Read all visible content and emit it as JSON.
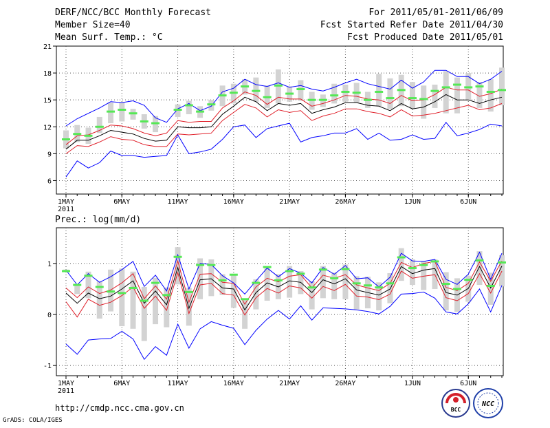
{
  "header": {
    "title": "DERF/NCC/BCC Monthly Forecast",
    "member_size": "Member Size=40",
    "for_range": "For 2011/05/01-2011/06/09",
    "refer_date": "Fcst Started Refer Date 2011/04/30",
    "produced_date": "Fcst Produced Date 2011/05/01"
  },
  "footer": {
    "url": "http://cmdp.ncc.cma.gov.cn",
    "grads_credit": "GrADS: COLA/IGES",
    "logo_bcc": "BCC",
    "logo_ncc": "NCC"
  },
  "colors": {
    "box": "#d3d3d3",
    "median": "#55e855",
    "mean": "#000000",
    "spread": "#e0202a",
    "envelope": "#0000ff",
    "grid": "#555555"
  },
  "chart_data": [
    {
      "type": "line",
      "title": "Mean Surf. Temp.: °C",
      "xlabel": "",
      "ylabel": "°C",
      "ylim": [
        4.5,
        21
      ],
      "yticks": [
        6,
        9,
        12,
        15,
        18,
        21
      ],
      "grid": true,
      "x_tick_labels": [
        "1MAY",
        "6MAY",
        "11MAY",
        "16MAY",
        "21MAY",
        "26MAY",
        "1JUN",
        "6JUN"
      ],
      "x_tick_days": [
        1,
        6,
        11,
        16,
        21,
        26,
        32,
        37
      ],
      "x_year_label": "2011",
      "days": [
        1,
        2,
        3,
        4,
        5,
        6,
        7,
        8,
        9,
        10,
        11,
        12,
        13,
        14,
        15,
        16,
        17,
        18,
        19,
        20,
        21,
        22,
        23,
        24,
        25,
        26,
        27,
        28,
        29,
        30,
        31,
        32,
        33,
        34,
        35,
        36,
        37,
        38,
        39,
        40
      ],
      "series": [
        {
          "name": "max",
          "values": [
            12.1,
            12.9,
            13.5,
            14.1,
            14.8,
            14.7,
            14.9,
            14.4,
            13.0,
            12.5,
            14.0,
            14.6,
            13.8,
            14.3,
            15.9,
            16.3,
            17.3,
            16.7,
            16.5,
            16.9,
            16.4,
            16.6,
            16.2,
            16.0,
            16.4,
            16.9,
            17.3,
            16.8,
            16.5,
            16.2,
            17.2,
            16.3,
            17.0,
            18.3,
            18.3,
            17.6,
            17.6,
            16.8,
            17.3,
            18.2
          ]
        },
        {
          "name": "upper",
          "values": [
            10.0,
            11.0,
            11.1,
            11.6,
            12.2,
            12.1,
            11.8,
            11.3,
            11.0,
            11.3,
            12.7,
            12.5,
            12.6,
            12.6,
            14.1,
            14.9,
            15.9,
            15.5,
            14.5,
            15.3,
            15.1,
            15.1,
            14.3,
            14.6,
            15.0,
            15.5,
            15.4,
            15.1,
            15.0,
            14.6,
            15.5,
            14.9,
            15.0,
            15.6,
            16.4,
            16.1,
            16.1,
            15.4,
            15.7,
            16.2
          ]
        },
        {
          "name": "mean",
          "values": [
            9.5,
            10.5,
            10.5,
            11.0,
            11.6,
            11.4,
            11.2,
            10.7,
            10.4,
            10.5,
            12.0,
            11.9,
            11.9,
            12.0,
            13.4,
            14.3,
            15.3,
            14.8,
            13.8,
            14.6,
            14.4,
            14.6,
            13.5,
            13.9,
            14.2,
            14.7,
            14.7,
            14.4,
            14.3,
            13.8,
            14.6,
            14.0,
            14.2,
            14.8,
            15.6,
            15.0,
            15.0,
            14.6,
            15.0,
            15.3
          ]
        },
        {
          "name": "lower",
          "values": [
            9.0,
            9.9,
            9.8,
            10.3,
            10.9,
            10.6,
            10.5,
            10.0,
            9.8,
            9.8,
            11.2,
            11.1,
            11.2,
            11.3,
            12.7,
            13.6,
            14.5,
            14.1,
            13.1,
            13.9,
            13.6,
            13.8,
            12.7,
            13.2,
            13.5,
            14.0,
            14.0,
            13.7,
            13.5,
            13.1,
            13.9,
            13.2,
            13.3,
            13.5,
            13.8,
            14.1,
            14.4,
            13.9,
            14.1,
            14.6
          ]
        },
        {
          "name": "min",
          "values": [
            6.4,
            8.2,
            7.4,
            8.0,
            9.3,
            8.8,
            8.8,
            8.6,
            8.7,
            8.8,
            11.1,
            9.0,
            9.2,
            9.5,
            10.6,
            12.0,
            12.2,
            10.8,
            11.8,
            12.1,
            12.4,
            10.3,
            10.8,
            11.0,
            11.3,
            11.3,
            11.8,
            10.6,
            11.3,
            10.5,
            10.6,
            11.1,
            10.6,
            10.7,
            12.5,
            11.0,
            11.3,
            11.7,
            12.3,
            12.1
          ]
        }
      ],
      "median": [
        10.6,
        11.2,
        11.0,
        12.0,
        13.7,
        13.9,
        13.5,
        12.6,
        12.4,
        null,
        13.9,
        14.4,
        13.7,
        14.5,
        15.5,
        15.8,
        16.5,
        16.0,
        15.3,
        16.6,
        15.7,
        16.2,
        15.0,
        15.0,
        15.5,
        15.9,
        15.8,
        15.0,
        15.9,
        15.2,
        16.1,
        15.2,
        15.1,
        16.0,
        16.4,
        16.7,
        16.4,
        16.5,
        15.9,
        16.1
      ],
      "box_top": [
        11.6,
        12.2,
        11.9,
        13.1,
        14.7,
        14.7,
        14.0,
        13.4,
        13.2,
        null,
        14.5,
        14.9,
        14.3,
        15.0,
        16.6,
        16.8,
        17.3,
        17.5,
        16.6,
        18.4,
        16.5,
        17.2,
        15.9,
        15.6,
        16.8,
        16.7,
        16.9,
        15.9,
        17.9,
        17.4,
        17.8,
        17.0,
        16.6,
        16.7,
        18.2,
        17.5,
        18.0,
        17.0,
        17.3,
        18.6
      ],
      "box_bottom": [
        9.6,
        10.3,
        10.1,
        11.3,
        12.4,
        12.6,
        12.8,
        11.8,
        11.4,
        null,
        13.1,
        13.4,
        13.0,
        13.8,
        14.3,
        14.6,
        15.6,
        14.8,
        14.1,
        14.6,
        14.8,
        14.9,
        13.9,
        14.2,
        14.6,
        14.8,
        14.7,
        14.1,
        14.3,
        14.0,
        14.3,
        14.0,
        12.9,
        14.1,
        13.5,
        13.5,
        15.0,
        14.1,
        13.7,
        14.4
      ]
    },
    {
      "type": "line",
      "title": "Prec.: log(mm/d)",
      "xlabel": "",
      "ylabel": "log(mm/d)",
      "ylim": [
        -1.2,
        1.7
      ],
      "yticks": [
        -1,
        0,
        1
      ],
      "grid": true,
      "x_tick_labels": [
        "1MAY",
        "6MAY",
        "11MAY",
        "16MAY",
        "21MAY",
        "26MAY",
        "1JUN",
        "6JUN"
      ],
      "x_tick_days": [
        1,
        6,
        11,
        16,
        21,
        26,
        32,
        37
      ],
      "x_year_label": "2011",
      "days": [
        1,
        2,
        3,
        4,
        5,
        6,
        7,
        8,
        9,
        10,
        11,
        12,
        13,
        14,
        15,
        16,
        17,
        18,
        19,
        20,
        21,
        22,
        23,
        24,
        25,
        26,
        27,
        28,
        29,
        30,
        31,
        32,
        33,
        34,
        35,
        36,
        37,
        38,
        39,
        40
      ],
      "series": [
        {
          "name": "max",
          "values": [
            0.87,
            0.58,
            0.8,
            0.63,
            0.74,
            0.88,
            1.04,
            0.55,
            0.77,
            0.46,
            1.17,
            0.5,
            1.0,
            0.98,
            0.76,
            0.62,
            0.4,
            0.66,
            0.91,
            0.74,
            0.9,
            0.81,
            0.62,
            0.92,
            0.79,
            0.96,
            0.7,
            0.72,
            0.54,
            0.73,
            1.2,
            1.05,
            1.04,
            1.08,
            0.69,
            0.59,
            0.79,
            1.22,
            0.69,
            1.2
          ]
        },
        {
          "name": "upper",
          "values": [
            0.52,
            0.33,
            0.54,
            0.41,
            0.48,
            0.62,
            0.8,
            0.31,
            0.56,
            0.3,
            1.05,
            0.24,
            0.79,
            0.8,
            0.63,
            0.61,
            0.2,
            0.54,
            0.71,
            0.64,
            0.75,
            0.78,
            0.52,
            0.77,
            0.71,
            0.78,
            0.58,
            0.52,
            0.47,
            0.61,
            1.02,
            0.92,
            1.0,
            1.04,
            0.53,
            0.47,
            0.61,
            1.03,
            0.65,
            1.05
          ]
        },
        {
          "name": "mean",
          "values": [
            0.42,
            0.22,
            0.42,
            0.31,
            0.36,
            0.5,
            0.66,
            0.22,
            0.46,
            0.19,
            0.92,
            0.12,
            0.68,
            0.7,
            0.52,
            0.5,
            0.09,
            0.43,
            0.62,
            0.54,
            0.66,
            0.63,
            0.43,
            0.68,
            0.6,
            0.7,
            0.48,
            0.43,
            0.38,
            0.5,
            0.94,
            0.8,
            0.87,
            0.9,
            0.43,
            0.38,
            0.51,
            0.94,
            0.52,
            0.95
          ]
        },
        {
          "name": "lower",
          "values": [
            0.25,
            -0.05,
            0.3,
            0.18,
            0.24,
            0.37,
            0.54,
            0.12,
            0.36,
            0.08,
            0.82,
            0.02,
            0.58,
            0.61,
            0.41,
            0.38,
            -0.01,
            0.33,
            0.51,
            0.42,
            0.56,
            0.52,
            0.32,
            0.55,
            0.47,
            0.59,
            0.36,
            0.34,
            0.29,
            0.4,
            0.85,
            0.71,
            0.75,
            0.78,
            0.33,
            0.27,
            0.41,
            0.8,
            0.42,
            0.85
          ]
        },
        {
          "name": "min",
          "values": [
            -0.58,
            -0.78,
            -0.5,
            -0.48,
            -0.47,
            -0.33,
            -0.48,
            -0.88,
            -0.63,
            -0.8,
            -0.19,
            -0.66,
            -0.28,
            -0.14,
            -0.21,
            -0.27,
            -0.59,
            -0.31,
            -0.09,
            0.08,
            -0.09,
            0.17,
            -0.11,
            0.13,
            0.12,
            0.11,
            0.09,
            0.06,
            0.01,
            0.16,
            0.4,
            0.41,
            0.44,
            0.32,
            0.05,
            0.01,
            0.21,
            0.5,
            0.05,
            0.57
          ]
        }
      ],
      "median": [
        0.85,
        0.58,
        0.76,
        0.54,
        0.45,
        0.42,
        0.52,
        0.27,
        0.62,
        0.38,
        1.13,
        0.44,
        0.97,
        0.97,
        0.67,
        0.78,
        0.3,
        0.62,
        0.93,
        0.67,
        0.85,
        0.8,
        0.53,
        0.88,
        0.71,
        0.89,
        0.61,
        0.57,
        0.53,
        0.61,
        1.12,
        0.91,
        0.97,
        1.04,
        0.6,
        0.5,
        0.68,
        1.06,
        0.56,
        1.02
      ],
      "box_top": [
        0.88,
        0.6,
        0.84,
        0.65,
        0.88,
        0.9,
        0.84,
        0.54,
        0.72,
        0.53,
        1.32,
        0.52,
        1.1,
        1.08,
        0.79,
        0.78,
        0.28,
        0.69,
        0.94,
        0.79,
        0.95,
        0.85,
        0.65,
        0.95,
        0.82,
        0.98,
        0.75,
        0.74,
        0.63,
        0.81,
        1.3,
        1.08,
        1.05,
        1.08,
        0.83,
        0.71,
        0.76,
        1.24,
        0.82,
        1.16
      ],
      "box_bottom": [
        0.83,
        0.4,
        0.32,
        -0.08,
        0.06,
        -0.23,
        -0.28,
        -0.52,
        -0.19,
        -0.25,
        0.59,
        -0.22,
        0.3,
        0.36,
        0.38,
        0.13,
        -0.28,
        0.1,
        0.27,
        0.3,
        0.33,
        0.4,
        0.1,
        0.32,
        0.3,
        0.3,
        0.1,
        0.12,
        0.08,
        0.22,
        0.66,
        0.58,
        0.48,
        0.5,
        0.08,
        0.05,
        0.25,
        0.58,
        0.19,
        0.55
      ]
    }
  ]
}
